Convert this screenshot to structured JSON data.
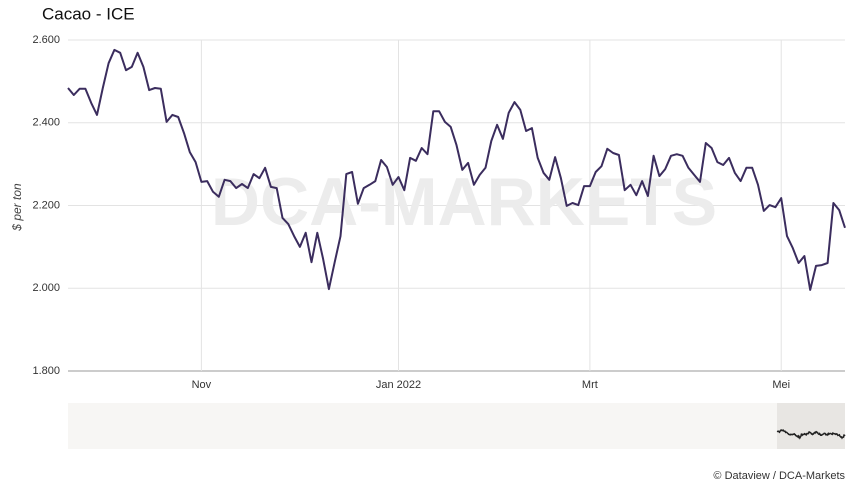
{
  "chart_data": {
    "type": "line",
    "title": "Cacao - ICE",
    "y_label": "$ per ton",
    "watermark": "DCA-MARKETS",
    "source": "© Dataview / DCA-Markets",
    "categories": [
      null,
      null,
      null,
      null,
      null,
      null,
      null,
      null,
      null,
      null,
      null,
      null,
      null,
      null,
      null,
      null,
      null,
      null,
      null,
      null,
      null,
      null,
      null,
      "Nov",
      null,
      null,
      null,
      null,
      null,
      null,
      null,
      null,
      null,
      null,
      null,
      null,
      null,
      null,
      null,
      null,
      null,
      null,
      null,
      null,
      null,
      null,
      null,
      null,
      null,
      null,
      null,
      null,
      null,
      null,
      null,
      null,
      null,
      "Jan 2022",
      null,
      null,
      null,
      null,
      null,
      null,
      null,
      null,
      null,
      null,
      null,
      null,
      null,
      null,
      null,
      null,
      null,
      null,
      null,
      null,
      null,
      null,
      null,
      null,
      null,
      null,
      null,
      null,
      null,
      null,
      null,
      null,
      "Mrt",
      null,
      null,
      null,
      null,
      null,
      null,
      null,
      null,
      null,
      null,
      null,
      null,
      null,
      null,
      null,
      null,
      null,
      null,
      null,
      null,
      null,
      null,
      null,
      null,
      null,
      null,
      null,
      null,
      null,
      null,
      null,
      null,
      "Mei",
      null,
      null,
      null,
      null,
      null,
      null,
      null,
      null,
      null,
      null,
      null
    ],
    "series": [
      {
        "name": "Cacao",
        "color": "#3b2d5e",
        "values": [
          2484,
          2467,
          2482,
          2482,
          2448,
          2419,
          2484,
          2544,
          2576,
          2569,
          2527,
          2535,
          2569,
          2535,
          2479,
          2484,
          2482,
          2402,
          2419,
          2414,
          2375,
          2329,
          2305,
          2257,
          2259,
          2233,
          2221,
          2262,
          2259,
          2242,
          2252,
          2242,
          2276,
          2266,
          2291,
          2245,
          2242,
          2170,
          2155,
          2126,
          2100,
          2134,
          2063,
          2134,
          2071,
          1998,
          2063,
          2126,
          2276,
          2281,
          2204,
          2242,
          2250,
          2259,
          2310,
          2293,
          2250,
          2269,
          2237,
          2315,
          2308,
          2339,
          2324,
          2428,
          2428,
          2402,
          2390,
          2346,
          2286,
          2303,
          2250,
          2274,
          2291,
          2356,
          2395,
          2361,
          2424,
          2450,
          2431,
          2380,
          2387,
          2315,
          2279,
          2262,
          2317,
          2266,
          2199,
          2206,
          2201,
          2247,
          2247,
          2281,
          2295,
          2337,
          2327,
          2322,
          2237,
          2250,
          2225,
          2259,
          2223,
          2320,
          2271,
          2288,
          2320,
          2324,
          2320,
          2291,
          2274,
          2257,
          2351,
          2339,
          2305,
          2298,
          2315,
          2279,
          2259,
          2291,
          2291,
          2250,
          2187,
          2201,
          2196,
          2218,
          2126,
          2097,
          2061,
          2078,
          1996,
          2054,
          2056,
          2061,
          2206,
          2189,
          2146
        ]
      }
    ],
    "ylim": [
      1800,
      2600
    ],
    "yticks": [
      {
        "value": 1800,
        "label": "1.800"
      },
      {
        "value": 2000,
        "label": "2.000"
      },
      {
        "value": 2200,
        "label": "2.200"
      },
      {
        "value": 2400,
        "label": "2.400"
      },
      {
        "value": 2600,
        "label": "2.600"
      }
    ],
    "grid": true
  }
}
